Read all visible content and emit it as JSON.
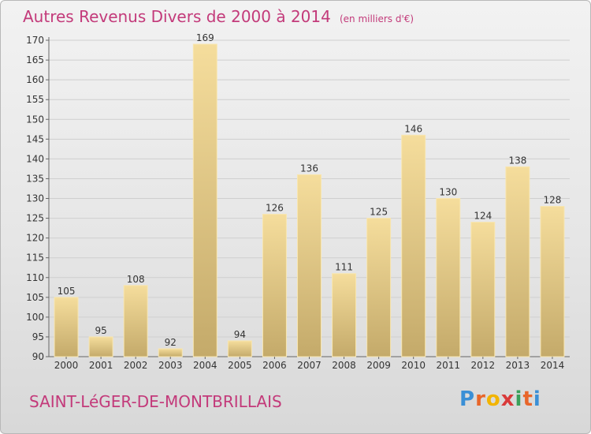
{
  "chart_data": {
    "type": "bar",
    "title": "Autres Revenus Divers de 2000 à 2014",
    "unit": "(en milliers d'€)",
    "categories": [
      "2000",
      "2001",
      "2002",
      "2003",
      "2004",
      "2005",
      "2006",
      "2007",
      "2008",
      "2009",
      "2010",
      "2011",
      "2012",
      "2013",
      "2014"
    ],
    "values": [
      105,
      95,
      108,
      92,
      169,
      94,
      126,
      136,
      111,
      125,
      146,
      130,
      124,
      138,
      128
    ],
    "ylim": [
      90,
      170
    ],
    "yticks": [
      90,
      95,
      100,
      105,
      110,
      115,
      120,
      125,
      130,
      135,
      140,
      145,
      150,
      155,
      160,
      165,
      170
    ],
    "grid": "horizontal",
    "legend": "none",
    "colors": {
      "bar_top": "#f5dd9c",
      "bar_bottom": "#c4aa6a",
      "bar_edge": "#f8e6b0",
      "title": "#c33a7a"
    }
  },
  "footer": {
    "town": "SAINT-LéGER-DE-MONTBRILLAIS"
  },
  "logo": {
    "letters": [
      "P",
      "r",
      "o",
      "x",
      "i",
      "t",
      "i"
    ],
    "colors": [
      "#3a8fd6",
      "#e8662a",
      "#f2b400",
      "#d93a3a",
      "#3aa05a",
      "#e8662a",
      "#3a8fd6"
    ]
  }
}
